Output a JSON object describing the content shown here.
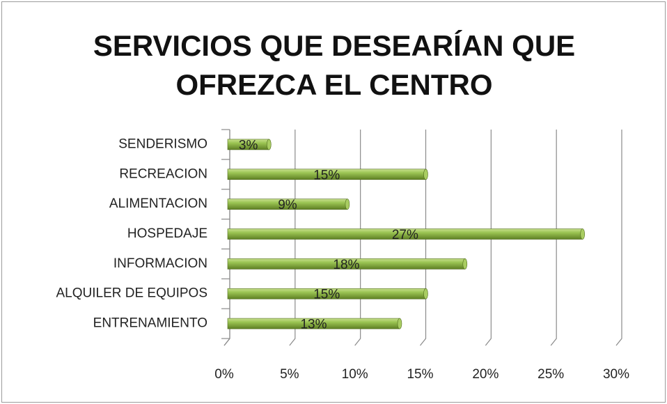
{
  "chart_data": {
    "type": "bar",
    "orientation": "horizontal",
    "title": "SERVICIOS QUE DESEARÍAN QUE OFREZCA EL CENTRO",
    "categories": [
      "ENTRENAMIENTO",
      "ALQUILER DE EQUIPOS",
      "INFORMACION",
      "HOSPEDAJE",
      "ALIMENTACION",
      "RECREACION",
      "SENDERISMO"
    ],
    "values": [
      13,
      15,
      18,
      27,
      9,
      15,
      3
    ],
    "value_labels": [
      "13%",
      "15%",
      "18%",
      "27%",
      "9%",
      "15%",
      "3%"
    ],
    "color": "#8db842",
    "xlim": [
      0,
      30
    ],
    "xticks": [
      {
        "value": 0,
        "label": "0%"
      },
      {
        "value": 5,
        "label": "5%"
      },
      {
        "value": 10,
        "label": "10%"
      },
      {
        "value": 15,
        "label": "15%"
      },
      {
        "value": 20,
        "label": "20%"
      },
      {
        "value": 25,
        "label": "25%"
      },
      {
        "value": 30,
        "label": "30%"
      }
    ],
    "grid": true
  }
}
